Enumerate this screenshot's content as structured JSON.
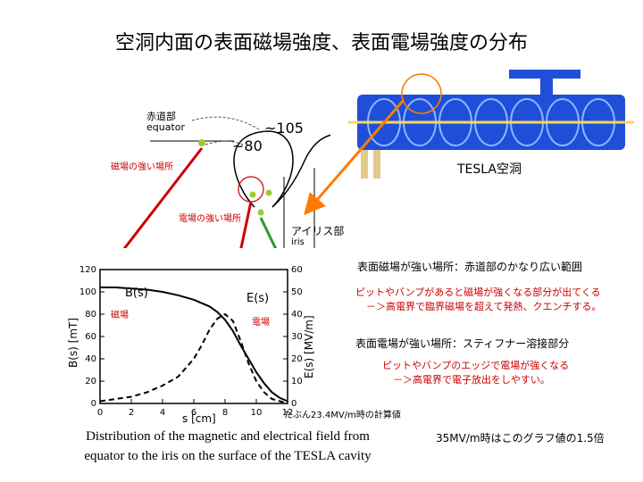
{
  "title": "空洞内面の表面磁場強度、表面電場強度の分布",
  "cavity_diagram": {
    "label_equator_jp": "赤道部",
    "label_equator_en": "equator",
    "value_105": "~105",
    "value_80": "~80",
    "label_strong_magnetic": "磁場の強い場所",
    "label_strong_electric": "電場の強い場所",
    "label_iris_jp": "アイリス部",
    "label_iris_en": "iris"
  },
  "tesla_label": "TESLA空洞",
  "notes": {
    "magnetic_strong": "表面磁場が強い場所：赤道部のかなり広い範囲",
    "magnetic_detail_1": "ピットやバンプがあると磁場が強くなる部分が出てくる",
    "magnetic_detail_2": "－＞高電界で臨界磁場を超えて発熱、クエンチする。",
    "electric_strong": "表面電場が強い場所：スティフナー溶接部分",
    "electric_detail_1": "ピットやバンプのエッジで電場が強くなる",
    "electric_detail_2": "－＞高電界で電子放出をしやすい。"
  },
  "chart_data": {
    "type": "line",
    "xlabel": "s [cm]",
    "ylabel_left": "B(s) [mT]",
    "ylabel_right": "E(s) [MV/m]",
    "xlim": [
      0,
      12
    ],
    "ylim_left": [
      0,
      120
    ],
    "ylim_right": [
      0,
      60
    ],
    "x_ticks": [
      "0",
      "2",
      "4",
      "6",
      "8",
      "10",
      "12"
    ],
    "y_left_ticks": [
      "0",
      "20",
      "40",
      "60",
      "80",
      "100",
      "120"
    ],
    "y_right_ticks": [
      "0",
      "10",
      "20",
      "30",
      "40",
      "50",
      "60"
    ],
    "curve_labels": {
      "b": "B(s)",
      "e": "E(s)"
    },
    "annotation_magnetic": "磁場",
    "annotation_electric": "電場",
    "series": [
      {
        "name": "B(s)",
        "axis": "left",
        "style": "solid",
        "x": [
          0,
          1,
          2,
          3,
          4,
          5,
          6,
          7,
          7.5,
          8,
          8.5,
          9,
          9.5,
          10,
          10.5,
          11,
          11.5,
          12
        ],
        "y": [
          104,
          104,
          103,
          102,
          100,
          97,
          93,
          87,
          82,
          75,
          65,
          52,
          40,
          28,
          18,
          10,
          5,
          2
        ]
      },
      {
        "name": "E(s)",
        "axis": "right",
        "style": "dashed",
        "x": [
          0,
          1,
          2,
          3,
          4,
          5,
          5.5,
          6,
          6.5,
          7,
          7.5,
          8,
          8.5,
          9,
          9.5,
          10,
          10.5,
          11,
          11.5,
          12
        ],
        "y": [
          1,
          2,
          3,
          5,
          8,
          12,
          16,
          20,
          26,
          33,
          38,
          40,
          37,
          28,
          18,
          10,
          5,
          2,
          1,
          0
        ]
      }
    ]
  },
  "calc_note": "たぶん23.4MV/m時の計算値",
  "factor_note": "35MV/m時はこのグラフ値の1.5倍",
  "caption_line1": "Distribution of the magnetic and electrical field from",
  "caption_line2": "equator to the iris on the surface of the TESLA cavity"
}
